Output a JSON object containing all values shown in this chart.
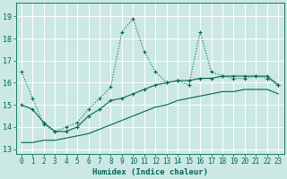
{
  "xlabel": "Humidex (Indice chaleur)",
  "bg_color": "#cce8e4",
  "grid_color": "#b0d8d2",
  "line_color": "#006655",
  "xlim": [
    -0.5,
    23.5
  ],
  "ylim": [
    12.8,
    19.6
  ],
  "yticks": [
    13,
    14,
    15,
    16,
    17,
    18,
    19
  ],
  "xticks": [
    0,
    1,
    2,
    3,
    4,
    5,
    6,
    7,
    8,
    9,
    10,
    11,
    12,
    13,
    14,
    15,
    16,
    17,
    18,
    19,
    20,
    21,
    22,
    23
  ],
  "series1_x": [
    0,
    1,
    2,
    3,
    4,
    5,
    6,
    7,
    8,
    9,
    10,
    11,
    12,
    13,
    14,
    15,
    16,
    17,
    18,
    19,
    20,
    21,
    22,
    23
  ],
  "series1_y": [
    16.5,
    15.3,
    14.1,
    13.8,
    14.0,
    14.2,
    14.8,
    15.3,
    15.8,
    18.3,
    18.9,
    17.4,
    16.5,
    16.0,
    16.1,
    15.9,
    18.3,
    16.5,
    16.3,
    16.2,
    16.2,
    16.3,
    16.2,
    15.9
  ],
  "series2_x": [
    0,
    1,
    2,
    3,
    4,
    5,
    6,
    7,
    8,
    9,
    10,
    11,
    12,
    13,
    14,
    15,
    16,
    17,
    18,
    19,
    20,
    21,
    22,
    23
  ],
  "series2_y": [
    15.0,
    14.8,
    14.2,
    13.8,
    13.8,
    14.0,
    14.5,
    14.8,
    15.2,
    15.3,
    15.5,
    15.7,
    15.9,
    16.0,
    16.1,
    16.1,
    16.2,
    16.2,
    16.3,
    16.3,
    16.3,
    16.3,
    16.3,
    15.9
  ],
  "series3_x": [
    0,
    1,
    2,
    3,
    4,
    5,
    6,
    7,
    8,
    9,
    10,
    11,
    12,
    13,
    14,
    15,
    16,
    17,
    18,
    19,
    20,
    21,
    22,
    23
  ],
  "series3_y": [
    13.3,
    13.3,
    13.4,
    13.4,
    13.5,
    13.6,
    13.7,
    13.9,
    14.1,
    14.3,
    14.5,
    14.7,
    14.9,
    15.0,
    15.2,
    15.3,
    15.4,
    15.5,
    15.6,
    15.6,
    15.7,
    15.7,
    15.7,
    15.5
  ]
}
